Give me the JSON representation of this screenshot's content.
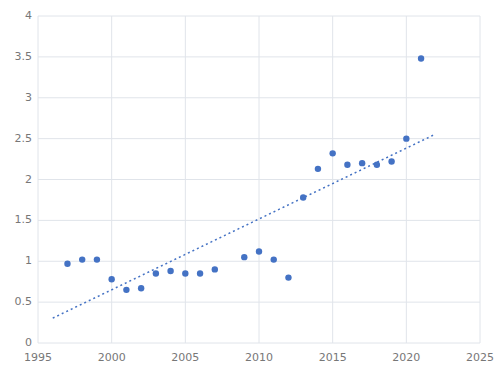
{
  "chart_data": {
    "type": "scatter",
    "series": [
      {
        "type": "scatter",
        "color": "#4472C4",
        "marker": "circle",
        "x": [
          1997,
          1998,
          1999,
          2000,
          2001,
          2002,
          2003,
          2004,
          2005,
          2006,
          2007,
          2009,
          2010,
          2011,
          2012,
          2013,
          2014,
          2015,
          2016,
          2017,
          2018,
          2019,
          2020,
          2021
        ],
        "values": [
          0.97,
          1.02,
          1.02,
          0.78,
          0.65,
          0.67,
          0.85,
          0.88,
          0.85,
          0.85,
          0.9,
          1.05,
          1.12,
          1.02,
          0.8,
          1.78,
          2.13,
          2.32,
          2.18,
          2.2,
          2.18,
          2.22,
          2.5,
          3.48
        ]
      },
      {
        "type": "line",
        "color": "#4472C4",
        "line_style": "dotted",
        "x": [
          1996,
          2022
        ],
        "values": [
          0.3043,
          2.5568
        ]
      }
    ],
    "xlim": [
      1995,
      2025
    ],
    "xticks": [
      1995,
      2000,
      2005,
      2010,
      2015,
      2020,
      2025
    ],
    "ylim": [
      0,
      4
    ],
    "yticks": [
      0,
      0.5,
      1,
      1.5,
      2,
      2.5,
      3,
      3.5,
      4
    ],
    "grid": true
  }
}
